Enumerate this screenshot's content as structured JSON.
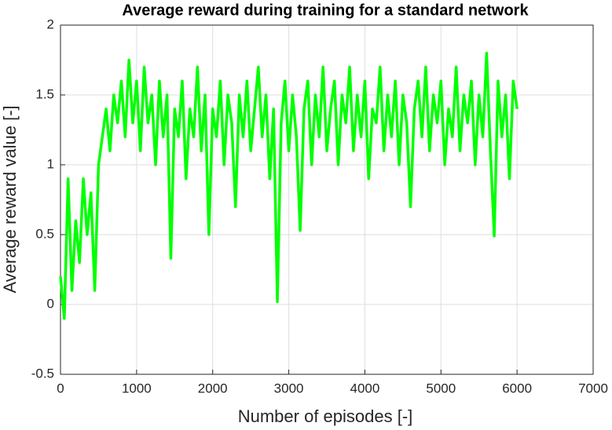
{
  "chart_data": {
    "type": "line",
    "title": "Average reward during training for a standard network",
    "x_label": "Number of episodes [-]",
    "y_label": "Average reward value [-]",
    "xlim": [
      0,
      7000
    ],
    "xticks": [
      0,
      1000,
      2000,
      3000,
      4000,
      5000,
      6000,
      7000
    ],
    "ylim": [
      -0.5,
      2
    ],
    "yticks": [
      -0.5,
      0,
      0.5,
      1,
      1.5,
      2
    ],
    "grid": true,
    "x": [
      0,
      50,
      100,
      150,
      200,
      250,
      300,
      350,
      400,
      450,
      500,
      550,
      600,
      650,
      700,
      750,
      800,
      850,
      900,
      950,
      1000,
      1050,
      1100,
      1150,
      1200,
      1250,
      1300,
      1350,
      1400,
      1450,
      1500,
      1550,
      1600,
      1650,
      1700,
      1750,
      1800,
      1850,
      1900,
      1950,
      2000,
      2050,
      2100,
      2150,
      2200,
      2250,
      2300,
      2350,
      2400,
      2450,
      2500,
      2550,
      2600,
      2650,
      2700,
      2750,
      2800,
      2850,
      2900,
      2950,
      3000,
      3050,
      3100,
      3150,
      3200,
      3250,
      3300,
      3350,
      3400,
      3450,
      3500,
      3550,
      3600,
      3650,
      3700,
      3750,
      3800,
      3850,
      3900,
      3950,
      4000,
      4050,
      4100,
      4150,
      4200,
      4250,
      4300,
      4350,
      4400,
      4450,
      4500,
      4550,
      4600,
      4650,
      4700,
      4750,
      4800,
      4850,
      4900,
      4950,
      5000,
      5050,
      5100,
      5150,
      5200,
      5250,
      5300,
      5350,
      5400,
      5450,
      5500,
      5550,
      5600,
      5650,
      5700,
      5750,
      5800,
      5850,
      5900,
      5950,
      6000
    ],
    "series": [
      {
        "color": "#00ff00",
        "values": [
          0.2,
          -0.1,
          0.9,
          0.1,
          0.6,
          0.3,
          0.9,
          0.5,
          0.8,
          0.1,
          1.0,
          1.2,
          1.4,
          1.1,
          1.5,
          1.3,
          1.6,
          1.2,
          1.75,
          1.3,
          1.6,
          1.1,
          1.7,
          1.3,
          1.5,
          1.0,
          1.6,
          1.2,
          1.5,
          0.33,
          1.4,
          1.2,
          1.6,
          0.9,
          1.4,
          1.2,
          1.7,
          1.1,
          1.5,
          0.5,
          1.4,
          1.2,
          1.6,
          1.0,
          1.5,
          1.3,
          0.7,
          1.5,
          1.2,
          1.6,
          1.1,
          1.4,
          1.7,
          1.2,
          1.5,
          0.9,
          1.4,
          0.02,
          1.3,
          1.6,
          1.1,
          1.5,
          1.2,
          0.53,
          1.4,
          1.6,
          1.0,
          1.5,
          1.2,
          1.7,
          1.1,
          1.4,
          1.6,
          1.0,
          1.5,
          1.3,
          1.7,
          1.1,
          1.5,
          1.2,
          1.6,
          0.9,
          1.4,
          1.3,
          1.7,
          1.1,
          1.5,
          1.2,
          1.6,
          1.0,
          1.5,
          1.3,
          0.7,
          1.4,
          1.6,
          1.2,
          1.7,
          1.1,
          1.5,
          1.3,
          1.6,
          1.0,
          1.4,
          1.2,
          1.7,
          1.1,
          1.5,
          1.3,
          1.6,
          1.0,
          1.5,
          1.2,
          1.8,
          1.1,
          0.49,
          1.6,
          1.2,
          1.5,
          0.9,
          1.6,
          1.4
        ]
      }
    ]
  }
}
